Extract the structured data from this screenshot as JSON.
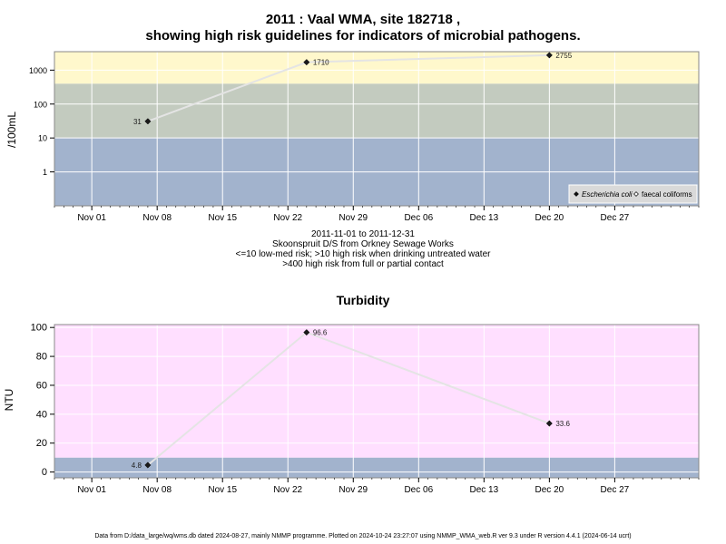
{
  "header": {
    "title_line1": "2011 : Vaal WMA, site 182718 ,",
    "title_line2": "showing high risk guidelines for indicators of microbial pathogens."
  },
  "captions": {
    "line1": "2011-11-01 to 2011-12-31",
    "line2": "Skoonspruit D/S from Orkney Sewage Works",
    "line3": "<=10 low-med risk; >10 high risk when drinking untreated water",
    "line4": ">400 high risk from full or partial contact"
  },
  "footer": {
    "text": "Data from D:/data_large/wq/wms.db dated 2024-08-27, mainly NMMP programme. Plotted on 2024-10-24 23:27:07 using NMMP_WMA_web.R ver 9.3 under R version 4.4.1 (2024-06-14 ucrt)"
  },
  "colors": {
    "band_low": "#a2b3cd",
    "band_mid": "#c3cbbf",
    "band_high": "#fff8cc",
    "turbidity_bg": "#ffdfff",
    "line": "#e4e4e4",
    "grid": "#ffffff",
    "point": "#1a1a1a"
  },
  "chart_data": [
    {
      "type": "line",
      "title": "",
      "ylabel": "/100mL",
      "y_scale": "log",
      "ylim": [
        0.1,
        3500
      ],
      "y_ticks": [
        1,
        10,
        100,
        1000
      ],
      "y_tick_labels": [
        "1",
        "10",
        "100",
        "1000"
      ],
      "x_range": [
        "2011-10-28",
        "2012-01-05"
      ],
      "x_ticks": [
        "2011-11-01",
        "2011-11-08",
        "2011-11-15",
        "2011-11-22",
        "2011-11-29",
        "2011-12-06",
        "2011-12-13",
        "2011-12-20",
        "2011-12-27"
      ],
      "x_tick_labels": [
        "Nov 01",
        "Nov 08",
        "Nov 15",
        "Nov 22",
        "Nov 29",
        "Dec 06",
        "Dec 13",
        "Dec 20",
        "Dec 27"
      ],
      "bands": [
        {
          "from": 0.1,
          "to": 10,
          "color": "#a2b3cd"
        },
        {
          "from": 10,
          "to": 400,
          "color": "#c3cbbf"
        },
        {
          "from": 400,
          "to": 3500,
          "color": "#fff8cc"
        }
      ],
      "grid": true,
      "legend_position": "bottom-right",
      "legend": [
        {
          "name": "Escherichia coli",
          "marker": "filled-diamond",
          "italic": true
        },
        {
          "name": "faecal coliforms",
          "marker": "open-diamond",
          "italic": false
        }
      ],
      "series": [
        {
          "name": "Escherichia coli",
          "x": [
            "2011-11-07",
            "2011-11-24",
            "2011-12-20"
          ],
          "y": [
            31,
            1710,
            2755
          ],
          "labels": [
            "31",
            "1710",
            "2755"
          ]
        }
      ]
    },
    {
      "type": "line",
      "title": "Turbidity",
      "ylabel": "NTU",
      "y_scale": "linear",
      "ylim": [
        -4,
        102
      ],
      "y_ticks": [
        0,
        20,
        40,
        60,
        80,
        100
      ],
      "y_tick_labels": [
        "0",
        "20",
        "40",
        "60",
        "80",
        "100"
      ],
      "x_range": [
        "2011-10-28",
        "2012-01-05"
      ],
      "x_ticks": [
        "2011-11-01",
        "2011-11-08",
        "2011-11-15",
        "2011-11-22",
        "2011-11-29",
        "2011-12-06",
        "2011-12-13",
        "2011-12-20",
        "2011-12-27"
      ],
      "x_tick_labels": [
        "Nov 01",
        "Nov 08",
        "Nov 15",
        "Nov 22",
        "Nov 29",
        "Dec 06",
        "Dec 13",
        "Dec 20",
        "Dec 27"
      ],
      "bands": [
        {
          "from": -4,
          "to": 10,
          "color": "#a2b3cd"
        },
        {
          "from": 10,
          "to": 102,
          "color": "#ffdfff"
        }
      ],
      "grid": true,
      "series": [
        {
          "name": "",
          "x": [
            "2011-11-07",
            "2011-11-24",
            "2011-12-20"
          ],
          "y": [
            4.8,
            96.6,
            33.6
          ],
          "labels": [
            "4.8",
            "96.6",
            "33.6"
          ]
        }
      ]
    }
  ]
}
